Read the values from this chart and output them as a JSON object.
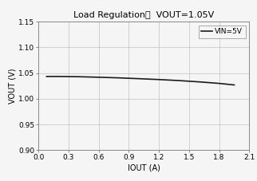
{
  "title": "Load Regulation．  VOUT=1.05V",
  "xlabel": "IOUT (A)",
  "ylabel": "VOUT (V)",
  "xlim": [
    0.0,
    2.1
  ],
  "ylim": [
    0.9,
    1.15
  ],
  "xticks": [
    0.0,
    0.3,
    0.6,
    0.9,
    1.2,
    1.5,
    1.8,
    2.1
  ],
  "yticks": [
    0.9,
    0.95,
    1.0,
    1.05,
    1.1,
    1.15
  ],
  "line_x": [
    0.08,
    0.2,
    0.4,
    0.6,
    0.8,
    1.0,
    1.2,
    1.4,
    1.6,
    1.8,
    1.95
  ],
  "line_y": [
    1.0435,
    1.0435,
    1.043,
    1.042,
    1.0408,
    1.0392,
    1.0375,
    1.0355,
    1.033,
    1.03,
    1.027
  ],
  "line_color": "#1a1a1a",
  "line_width": 1.2,
  "legend_label": "VIN=5V",
  "grid_color": "#c0c0c0",
  "background_color": "#f5f5f5",
  "title_fontsize": 8,
  "axis_fontsize": 7,
  "tick_fontsize": 6.5
}
